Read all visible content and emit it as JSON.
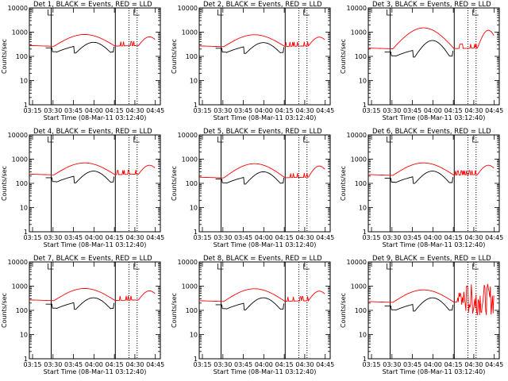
{
  "figure": {
    "panel_title_suffix": "BLACK = Events, RED = LLD",
    "ylabel": "Counts/sec",
    "xlabel": "Start Time (08-Mar-11 03:12:40)",
    "xticks": [
      "03:15",
      "03:30",
      "03:45",
      "04:00",
      "04:15",
      "04:30",
      "04:45"
    ],
    "yticks": [
      "1",
      "10",
      "100",
      "1000",
      "10000"
    ],
    "colors": {
      "events": "#000000",
      "lld": "#ff0000",
      "axes": "#000000"
    }
  },
  "chart_data": [
    {
      "type": "line",
      "title": "Det 1, BLACK = Events, RED = LLD",
      "xlabel": "Start Time (08-Mar-11 03:12:40)",
      "ylabel": "Counts/sec",
      "x_unit": "minutes after 03:12:40",
      "xlim": [
        0,
        96
      ],
      "ylim": [
        1,
        10000
      ],
      "yscale": "log",
      "lld_base": 280,
      "lld_peak": 800,
      "events_base": 250,
      "events_peak": 380,
      "noisy": false,
      "series": [
        {
          "name": "Events",
          "color": "#000000"
        },
        {
          "name": "LLD",
          "color": "#ff0000"
        }
      ],
      "markers": {
        "solid": [
          16,
          63
        ],
        "dotted": [
          73,
          79
        ]
      }
    },
    {
      "type": "line",
      "title": "Det 2, BLACK = Events, RED = LLD",
      "xlabel": "Start Time (08-Mar-11 03:12:40)",
      "ylabel": "Counts/sec",
      "x_unit": "minutes after 03:12:40",
      "xlim": [
        0,
        96
      ],
      "ylim": [
        1,
        10000
      ],
      "yscale": "log",
      "lld_base": 270,
      "lld_peak": 780,
      "events_base": 240,
      "events_peak": 370,
      "noisy": false,
      "series": [
        {
          "name": "Events",
          "color": "#000000"
        },
        {
          "name": "LLD",
          "color": "#ff0000"
        }
      ],
      "markers": {
        "solid": [
          16,
          63
        ],
        "dotted": [
          73,
          79
        ]
      }
    },
    {
      "type": "line",
      "title": "Det 3, BLACK = Events, RED = LLD",
      "xlabel": "Start Time (08-Mar-11 03:12:40)",
      "ylabel": "Counts/sec",
      "x_unit": "minutes after 03:12:40",
      "xlim": [
        0,
        96
      ],
      "ylim": [
        1,
        10000
      ],
      "yscale": "log",
      "lld_base": 220,
      "lld_peak": 1500,
      "events_base": 170,
      "events_peak": 450,
      "noisy": false,
      "series": [
        {
          "name": "Events",
          "color": "#000000"
        },
        {
          "name": "LLD",
          "color": "#ff0000"
        }
      ],
      "markers": {
        "solid": [
          16,
          63
        ],
        "dotted": [
          73,
          79
        ]
      }
    },
    {
      "type": "line",
      "title": "Det 4, BLACK = Events, RED = LLD",
      "xlabel": "Start Time (08-Mar-11 03:12:40)",
      "ylabel": "Counts/sec",
      "x_unit": "minutes after 03:12:40",
      "xlim": [
        0,
        96
      ],
      "ylim": [
        1,
        10000
      ],
      "yscale": "log",
      "lld_base": 240,
      "lld_peak": 700,
      "events_base": 190,
      "events_peak": 320,
      "noisy": false,
      "series": [
        {
          "name": "Events",
          "color": "#000000"
        },
        {
          "name": "LLD",
          "color": "#ff0000"
        }
      ],
      "markers": {
        "solid": [
          16,
          63
        ],
        "dotted": [
          73,
          79
        ]
      }
    },
    {
      "type": "line",
      "title": "Det 5, BLACK = Events, RED = LLD",
      "xlabel": "Start Time (08-Mar-11 03:12:40)",
      "ylabel": "Counts/sec",
      "x_unit": "minutes after 03:12:40",
      "xlim": [
        0,
        96
      ],
      "ylim": [
        1,
        10000
      ],
      "yscale": "log",
      "lld_base": 180,
      "lld_peak": 650,
      "events_base": 170,
      "events_peak": 300,
      "noisy": false,
      "series": [
        {
          "name": "Events",
          "color": "#000000"
        },
        {
          "name": "LLD",
          "color": "#ff0000"
        }
      ],
      "markers": {
        "solid": [
          16,
          63
        ],
        "dotted": [
          73,
          79
        ]
      }
    },
    {
      "type": "line",
      "title": "Det 6, BLACK = Events, RED = LLD",
      "xlabel": "Start Time (08-Mar-11 03:12:40)",
      "ylabel": "Counts/sec",
      "x_unit": "minutes after 03:12:40",
      "xlim": [
        0,
        96
      ],
      "ylim": [
        1,
        10000
      ],
      "yscale": "log",
      "lld_base": 230,
      "lld_peak": 700,
      "events_base": 180,
      "events_peak": 320,
      "noisy": false,
      "series": [
        {
          "name": "Events",
          "color": "#000000"
        },
        {
          "name": "LLD",
          "color": "#ff0000"
        }
      ],
      "markers": {
        "solid": [
          16,
          63
        ],
        "dotted": [
          73,
          79
        ]
      }
    },
    {
      "type": "line",
      "title": "Det 7, BLACK = Events, RED = LLD",
      "xlabel": "Start Time (08-Mar-11 03:12:40)",
      "ylabel": "Counts/sec",
      "x_unit": "minutes after 03:12:40",
      "xlim": [
        0,
        96
      ],
      "ylim": [
        1,
        10000
      ],
      "yscale": "log",
      "lld_base": 270,
      "lld_peak": 800,
      "events_base": 200,
      "events_peak": 330,
      "noisy": false,
      "series": [
        {
          "name": "Events",
          "color": "#000000"
        },
        {
          "name": "LLD",
          "color": "#ff0000"
        }
      ],
      "markers": {
        "solid": [
          16,
          63
        ],
        "dotted": [
          73,
          79
        ]
      }
    },
    {
      "type": "line",
      "title": "Det 8, BLACK = Events, RED = LLD",
      "xlabel": "Start Time (08-Mar-11 03:12:40)",
      "ylabel": "Counts/sec",
      "x_unit": "minutes after 03:12:40",
      "xlim": [
        0,
        96
      ],
      "ylim": [
        1,
        10000
      ],
      "yscale": "log",
      "lld_base": 250,
      "lld_peak": 780,
      "events_base": 190,
      "events_peak": 330,
      "noisy": false,
      "series": [
        {
          "name": "Events",
          "color": "#000000"
        },
        {
          "name": "LLD",
          "color": "#ff0000"
        }
      ],
      "markers": {
        "solid": [
          16,
          63
        ],
        "dotted": [
          73,
          79
        ]
      }
    },
    {
      "type": "line",
      "title": "Det 9, BLACK = Events, RED = LLD",
      "xlabel": "Start Time (08-Mar-11 03:12:40)",
      "ylabel": "Counts/sec",
      "x_unit": "minutes after 03:12:40",
      "xlim": [
        0,
        96
      ],
      "ylim": [
        1,
        10000
      ],
      "yscale": "log",
      "lld_base": 230,
      "lld_peak": 700,
      "events_base": 170,
      "events_peak": 330,
      "noisy": true,
      "series": [
        {
          "name": "Events",
          "color": "#000000"
        },
        {
          "name": "LLD",
          "color": "#ff0000"
        }
      ],
      "markers": {
        "solid": [
          16,
          63
        ],
        "dotted": [
          73,
          79
        ]
      }
    }
  ]
}
